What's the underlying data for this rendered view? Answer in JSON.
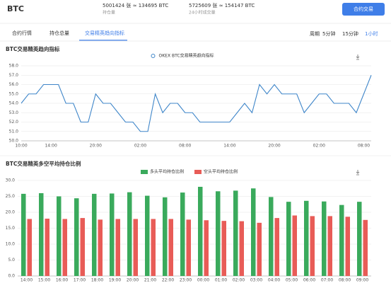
{
  "header": {
    "symbol": "BTC",
    "stats": [
      {
        "value": "5001424 张 ≈ 134695 BTC",
        "label": "持仓量"
      },
      {
        "value": "5725609 张 ≈ 154147 BTC",
        "label": "24小时成交量"
      }
    ],
    "button": "合约交易"
  },
  "tabs": [
    "合约行情",
    "持仓总量",
    "交易精英趋向指标"
  ],
  "period": {
    "label": "周期",
    "options": [
      "5分钟",
      "15分钟",
      "1小时"
    ]
  },
  "chart_data": [
    {
      "type": "line",
      "title": "BTC交易精英趋向指标",
      "categories": [
        "10:00",
        null,
        null,
        null,
        "14:00",
        null,
        null,
        null,
        null,
        null,
        "20:00",
        null,
        null,
        null,
        null,
        null,
        "02:00",
        null,
        null,
        null,
        null,
        null,
        "08:00",
        null,
        null,
        null,
        null,
        null,
        "14:00",
        null,
        null,
        null,
        null,
        null,
        "20:00",
        null,
        null,
        null,
        null,
        null,
        "02:00",
        null,
        null,
        null,
        null,
        null,
        "08:00",
        null
      ],
      "series": [
        {
          "name": "OKEX BTC交易精英趋向指标",
          "color": "#3f86c9",
          "values": [
            54,
            55,
            55,
            56,
            56,
            56,
            54,
            54,
            52,
            52,
            55,
            54,
            54,
            53,
            52,
            52,
            51,
            51,
            55,
            53,
            54,
            54,
            53,
            53,
            52,
            52,
            52,
            52,
            52,
            53,
            54,
            53,
            56,
            55,
            56,
            55,
            55,
            55,
            53,
            54,
            55,
            55,
            54,
            54,
            54,
            53,
            55,
            57
          ]
        }
      ],
      "ylim": [
        50,
        58
      ],
      "yticks": [
        {
          "value": 50,
          "label": "50.0"
        },
        {
          "value": 51,
          "label": "51.0"
        },
        {
          "value": 52,
          "label": "52.0"
        },
        {
          "value": 53,
          "label": "53.0"
        },
        {
          "value": 54,
          "label": "54.0"
        },
        {
          "value": 55,
          "label": "55.0"
        },
        {
          "value": 56,
          "label": "56.0"
        },
        {
          "value": 57,
          "label": "57.0"
        },
        {
          "value": 58,
          "label": "58.0"
        }
      ],
      "grid": true
    },
    {
      "type": "bar",
      "title": "BTC交易精英多空平均持仓比例",
      "categories": [
        "14:00",
        "15:00",
        "16:00",
        "17:00",
        "18:00",
        "19:00",
        "20:00",
        "21:00",
        "22:00",
        "23:00",
        "00:00",
        "01:00",
        "02:00",
        "03:00",
        "04:00",
        "05:00",
        "06:00",
        "07:00",
        "08:00",
        "09:00"
      ],
      "series": [
        {
          "name": "多头平均持仓比例",
          "color": "#3aaa5c",
          "values": [
            25.8,
            26.0,
            25.0,
            24.4,
            25.8,
            25.9,
            26.3,
            25.2,
            24.7,
            26.2,
            28.0,
            26.6,
            26.8,
            27.5,
            24.8,
            23.3,
            23.6,
            23.4,
            22.3,
            23.3
          ]
        },
        {
          "name": "空头平均持仓比例",
          "color": "#e85c57",
          "values": [
            17.9,
            18.0,
            17.9,
            18.2,
            17.7,
            17.9,
            17.9,
            17.9,
            17.9,
            17.7,
            17.5,
            17.3,
            17.2,
            16.7,
            18.2,
            19.0,
            18.8,
            18.8,
            18.6,
            17.6
          ]
        }
      ],
      "ylim": [
        0,
        30
      ],
      "yticks": [
        {
          "value": 0,
          "label": "0.0"
        },
        {
          "value": 5,
          "label": "5.0"
        },
        {
          "value": 10,
          "label": "10.0"
        },
        {
          "value": 15,
          "label": "15.0"
        },
        {
          "value": 20,
          "label": "20.0"
        },
        {
          "value": 25,
          "label": "25.0"
        },
        {
          "value": 30,
          "label": "30.0"
        }
      ],
      "grid": true
    }
  ]
}
